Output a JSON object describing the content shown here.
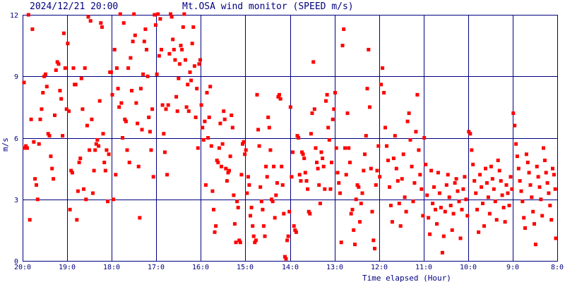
{
  "header": {
    "datetime": "2024/12/21 20:00",
    "title": "Mt.OSA wind monitor (SPEED m/s)"
  },
  "colors": {
    "background": "#ffffff",
    "grid": "#000080",
    "points": "#ff0000",
    "text": "#000080"
  },
  "chart_data": {
    "type": "scatter",
    "title": "Mt.OSA wind monitor (SPEED m/s)",
    "xlabel": "Time elapsed (Hour)",
    "ylabel": "m/s",
    "x_direction": "time runs from 20:00 at the left edge back to 8:00 at the right edge",
    "x_tick_labels": [
      "20:0",
      "19:0",
      "18:0",
      "17:0",
      "16:0",
      "15:0",
      "14:0",
      "13:0",
      "12:0",
      "11:0",
      "10:0",
      "9:0",
      "8:0"
    ],
    "y_tick_labels": [
      "0",
      "3",
      "6",
      "9",
      "12"
    ],
    "ylim": [
      0,
      12
    ],
    "grid": true,
    "point_marker": "small filled square",
    "series": [
      {
        "points_by_hour": [
          {
            "hour": "20:00-19:00",
            "speeds": [
              8.7,
              5.5,
              5.6,
              5.5,
              12.0,
              2.0,
              6.9,
              11.3,
              5.8,
              4.0,
              3.7,
              3.0,
              5.7,
              6.9,
              7.4,
              8.2,
              9.0,
              9.1,
              8.5,
              6.2,
              6.1,
              5.1,
              4.5,
              4.0,
              7.1,
              9.3,
              9.7,
              9.6,
              8.3,
              7.9,
              6.1,
              11.1,
              9.4,
              7.4
            ]
          },
          {
            "hour": "19:00-18:00",
            "speeds": [
              10.6,
              7.3,
              2.5,
              4.4,
              4.3,
              9.4,
              8.6,
              8.6,
              2.0,
              3.4,
              4.8,
              5.0,
              8.9,
              7.4,
              3.5,
              9.4,
              3.0,
              6.6,
              11.9,
              5.4,
              11.7,
              6.9,
              3.3,
              4.4,
              5.4,
              5.7,
              5.9,
              5.6,
              7.8,
              11.6,
              11.4,
              6.2,
              4.8,
              4.4,
              5.4,
              2.9,
              5.2,
              9.2,
              9.2
            ]
          },
          {
            "hour": "18:00-17:00",
            "speeds": [
              8.1,
              3.0,
              10.3,
              4.2,
              9.4,
              8.4,
              7.5,
              12.1,
              7.7,
              6.0,
              11.6,
              6.9,
              6.8,
              5.4,
              9.4,
              4.8,
              9.9,
              8.3,
              10.7,
              12.2,
              11.0,
              7.7,
              6.7,
              4.6,
              2.1,
              8.4,
              6.4,
              9.1,
              10.7,
              11.3,
              10.3,
              9.0,
              7.0,
              6.3,
              5.4,
              7.4,
              4.1,
              12.0,
              11.5
            ]
          },
          {
            "hour": "17:00-16:00",
            "speeds": [
              9.1,
              12.5,
              10.0,
              11.8,
              10.3,
              7.6,
              6.2,
              5.3,
              7.4,
              4.2,
              7.6,
              10.1,
              12.2,
              11.9,
              10.8,
              10.3,
              9.8,
              8.0,
              7.3,
              8.9,
              9.6,
              10.5,
              10.3,
              11.4,
              12.5,
              9.8,
              7.5,
              8.6,
              7.3,
              9.2,
              8.8,
              10.6,
              11.4,
              9.5,
              7.0,
              8.4,
              5.5,
              9.6,
              9.8
            ]
          },
          {
            "hour": "16:00-15:00",
            "speeds": [
              7.6,
              6.5,
              5.9,
              6.8,
              3.7,
              8.2,
              6.0,
              7.0,
              8.5,
              5.6,
              3.4,
              2.5,
              1.4,
              1.7,
              4.9,
              4.8,
              5.5,
              6.7,
              4.6,
              5.7,
              7.3,
              6.9,
              4.5,
              3.9,
              4.3,
              4.4,
              5.1,
              7.1,
              6.5,
              3.2,
              1.8,
              0.9,
              2.9,
              2.6,
              1.0,
              0.9,
              4.2,
              5.7,
              5.8,
              5.2
            ]
          },
          {
            "hour": "15:00-14:00",
            "speeds": [
              5.4,
              3.3,
              4.1,
              3.7,
              2.2,
              2.6,
              1.7,
              1.2,
              0.9,
              1.0,
              8.1,
              6.4,
              5.6,
              3.6,
              2.9,
              2.5,
              1.7,
              1.2,
              4.6,
              4.1,
              7.0,
              6.5,
              5.4,
              3.0,
              2.9,
              4.6,
              2.1,
              3.2,
              3.8,
              8.0,
              8.1,
              7.9,
              4.6,
              3.7,
              2.3,
              0.2,
              0.1,
              1.0,
              1.2,
              2.4
            ]
          },
          {
            "hour": "14:00-13:00",
            "speeds": [
              7.5,
              4.1,
              5.3,
              1.7,
              1.5,
              1.4,
              6.1,
              6.0,
              4.2,
              3.9,
              5.3,
              5.2,
              5.0,
              4.3,
              3.9,
              3.5,
              2.4,
              2.3,
              6.2,
              7.2,
              9.7,
              7.4,
              5.5,
              4.8,
              4.5,
              3.7,
              2.8,
              5.3,
              5.0,
              4.6,
              3.5,
              7.8,
              8.1,
              6.5,
              5.9,
              3.5,
              4.8,
              6.9,
              7.4
            ]
          },
          {
            "hour": "13:00-12:00",
            "speeds": [
              8.2,
              5.5,
              4.3,
              3.8,
              3.3,
              0.9,
              10.5,
              11.3,
              5.5,
              4.2,
              7.2,
              5.5,
              4.8,
              2.3,
              2.5,
              1.5,
              0.8,
              3.0,
              3.7,
              3.6,
              1.9,
              2.8,
              3.3,
              4.4,
              5.2,
              6.1,
              8.4,
              10.3,
              7.5,
              4.5,
              2.4,
              1.0,
              0.6,
              3.7,
              4.4,
              5.6
            ]
          },
          {
            "hour": "12:00-11:00",
            "speeds": [
              4.1,
              8.6,
              9.4,
              8.2,
              6.5,
              5.6,
              4.9,
              3.6,
              2.7,
              1.9,
              5.0,
              6.1,
              4.5,
              3.9,
              2.8,
              1.7,
              4.0,
              5.2,
              3.1,
              2.4,
              6.8,
              7.2,
              5.9,
              4.6,
              2.9,
              3.8,
              6.3,
              8.1,
              5.4,
              4.2,
              3.5,
              2.2
            ]
          },
          {
            "hour": "11:00-10:00",
            "speeds": [
              6.0,
              4.7,
              3.2,
              2.1,
              1.3,
              4.4,
              2.8,
              3.6,
              2.5,
              1.8,
              4.3,
              3.3,
              2.6,
              0.4,
              1.2,
              2.4,
              3.7,
              4.2,
              3.1,
              2.7,
              1.5,
              2.3,
              3.8,
              4.0,
              3.4,
              2.9,
              1.1,
              2.5,
              3.5,
              4.1,
              3.0,
              2.2
            ]
          },
          {
            "hour": "10:00-9:00",
            "speeds": [
              6.3,
              6.2,
              5.4,
              4.7,
              3.9,
              3.3,
              2.5,
              1.4,
              4.2,
              3.6,
              2.8,
              1.7,
              4.5,
              3.8,
              3.1,
              2.3,
              4.6,
              4.0,
              3.5,
              2.9,
              2.0,
              4.9,
              4.4,
              3.9,
              3.2,
              2.6,
              1.9,
              3.7,
              3.3,
              2.7,
              4.1,
              3.5
            ]
          },
          {
            "hour": "9:00-8:00",
            "speeds": [
              7.2,
              6.6,
              5.7,
              5.1,
              4.5,
              3.9,
              3.4,
              2.9,
              2.1,
              1.6,
              5.2,
              4.8,
              4.3,
              3.7,
              3.1,
              2.4,
              1.8,
              0.8,
              4.6,
              4.1,
              3.6,
              3.0,
              2.2,
              5.5,
              4.9,
              4.3,
              3.8,
              3.3,
              2.7,
              2.0,
              4.5,
              4.2,
              3.5,
              1.1
            ]
          }
        ]
      }
    ]
  }
}
